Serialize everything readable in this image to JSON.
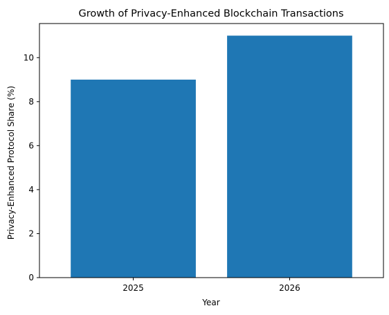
{
  "chart_data": {
    "type": "bar",
    "title": "Growth of Privacy-Enhanced Blockchain Transactions",
    "xlabel": "Year",
    "ylabel": "Privacy-Enhanced Protocol Share (%)",
    "categories": [
      "2025",
      "2026"
    ],
    "values": [
      9,
      11
    ],
    "ylim": [
      0,
      11.55
    ],
    "yticks": [
      0,
      2,
      4,
      6,
      8,
      10
    ],
    "bar_color": "#1f77b4",
    "grid": false,
    "legend": "none"
  }
}
